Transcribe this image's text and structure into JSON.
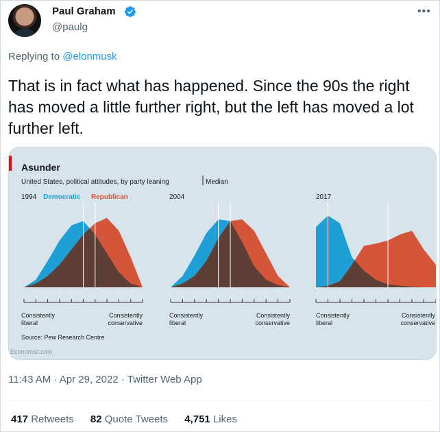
{
  "tweet": {
    "author_name": "Paul Graham",
    "author_handle": "@paulg",
    "replying_prefix": "Replying to ",
    "replying_to": "@elonmusk",
    "text": "That is in fact what has happened. Since the 90s the right has moved a little further right, but the left has moved a lot further left.",
    "timestamp": "11:43 AM · Apr 29, 2022 · Twitter Web App",
    "stats": [
      {
        "count": "417",
        "label": "Retweets"
      },
      {
        "count": "82",
        "label": "Quote Tweets"
      },
      {
        "count": "4,751",
        "label": "Likes"
      }
    ]
  },
  "chart_data": {
    "type": "area",
    "title": "Asunder",
    "subtitle": "United States, political attitudes, by party leaning",
    "median_label": "Median",
    "legend": [
      {
        "name": "Democratic",
        "color": "#1ea0d6"
      },
      {
        "name": "Republican",
        "color": "#d5553a"
      }
    ],
    "overlap_color": "#5e3f36",
    "x_ticks": [
      "0",
      "1",
      "2",
      "3",
      "4",
      "5",
      "6",
      "7",
      "8",
      "9",
      "10"
    ],
    "xlabel_left": "Consistently liberal",
    "xlabel_right": "Consistently conservative",
    "source": "Source: Pew Research Centre",
    "credit": "Economist.com",
    "panels": [
      {
        "year": "1994",
        "democratic": [
          0.0,
          0.1,
          0.35,
          0.62,
          0.82,
          0.88,
          0.7,
          0.45,
          0.2,
          0.05,
          0.0
        ],
        "republican": [
          0.0,
          0.05,
          0.15,
          0.3,
          0.5,
          0.7,
          0.85,
          0.92,
          0.75,
          0.4,
          0.0
        ],
        "dem_median": 5.0,
        "rep_median": 6.0
      },
      {
        "year": "2004",
        "democratic": [
          0.0,
          0.15,
          0.42,
          0.72,
          0.9,
          0.88,
          0.6,
          0.28,
          0.1,
          0.03,
          0.0
        ],
        "republican": [
          0.0,
          0.05,
          0.15,
          0.35,
          0.65,
          0.88,
          0.9,
          0.75,
          0.45,
          0.15,
          0.0
        ],
        "dem_median": 4.0,
        "rep_median": 5.0
      },
      {
        "year": "2017",
        "democratic": [
          0.8,
          0.95,
          0.85,
          0.4,
          0.22,
          0.1,
          0.04,
          0.02,
          0.01,
          0.0,
          0.0
        ],
        "republican": [
          0.0,
          0.02,
          0.08,
          0.3,
          0.55,
          0.58,
          0.62,
          0.7,
          0.75,
          0.5,
          0.3
        ],
        "dem_median": 1.0,
        "rep_median": 6.0
      }
    ]
  }
}
